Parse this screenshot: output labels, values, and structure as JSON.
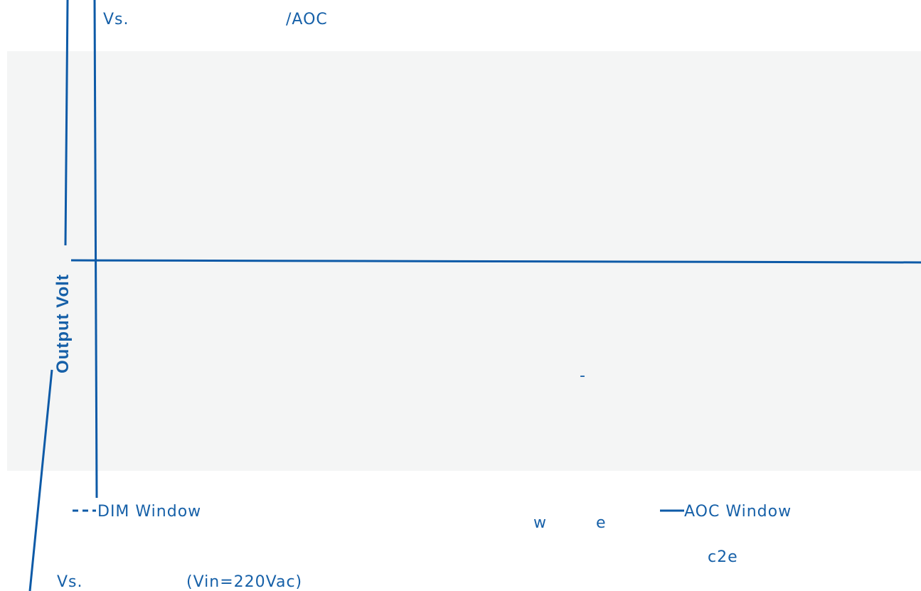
{
  "top_labels": {
    "left": "Vs.",
    "right": "/AOC"
  },
  "axis_label": "Output Volt",
  "plot_mark": "-",
  "legend": {
    "dim": "DIM Window",
    "aoc": "AOC Window"
  },
  "fragments": {
    "w": "w",
    "e": "e",
    "c2e": "c2e"
  },
  "bottom_labels": {
    "left": "Vs.",
    "right": "(Vin=220Vac)"
  }
}
